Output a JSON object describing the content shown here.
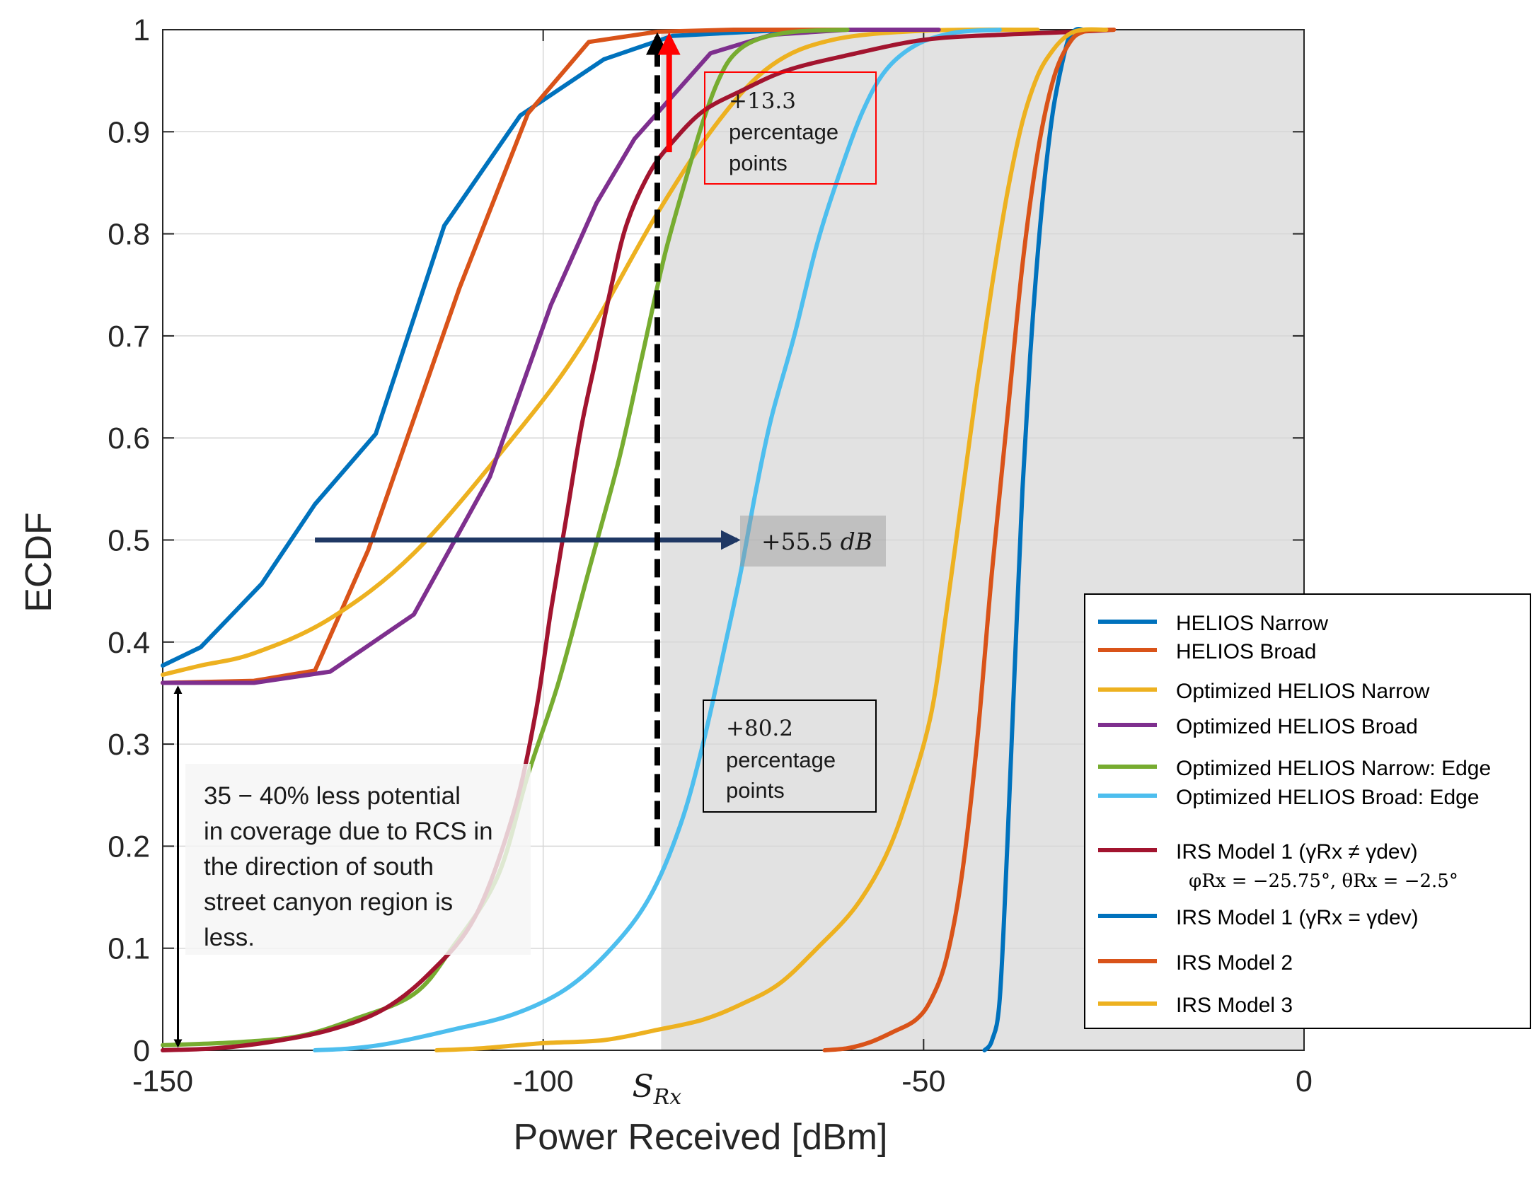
{
  "chart_data": {
    "type": "line",
    "title": "",
    "xlabel": "Power Received [dBm]",
    "ylabel": "ECDF",
    "xlim": [
      -150,
      0
    ],
    "ylim": [
      0,
      1
    ],
    "grid": true,
    "legend_placement": "bottom-right",
    "x_ticks": [
      {
        "value": -150,
        "label": "-150"
      },
      {
        "value": -100,
        "label": "-100"
      },
      {
        "value": -50,
        "label": "-50"
      },
      {
        "value": 0,
        "label": "0"
      }
    ],
    "y_ticks": [
      {
        "value": 0,
        "label": "0"
      },
      {
        "value": 0.1,
        "label": "0.1"
      },
      {
        "value": 0.2,
        "label": "0.2"
      },
      {
        "value": 0.3,
        "label": "0.3"
      },
      {
        "value": 0.4,
        "label": "0.4"
      },
      {
        "value": 0.5,
        "label": "0.5"
      },
      {
        "value": 0.6,
        "label": "0.6"
      },
      {
        "value": 0.7,
        "label": "0.7"
      },
      {
        "value": 0.8,
        "label": "0.8"
      },
      {
        "value": 0.9,
        "label": "0.9"
      },
      {
        "value": 1,
        "label": "1"
      }
    ],
    "shaded_region": {
      "x_from": -84.5,
      "x_to": 0,
      "color": "#e2e2e2"
    },
    "series": [
      {
        "name": "HELIOS Narrow",
        "color": "#0072BD",
        "smooth": false,
        "points": [
          [
            -150,
            0.377
          ],
          [
            -145,
            0.395
          ],
          [
            -141,
            0.426
          ],
          [
            -137,
            0.457
          ],
          [
            -130,
            0.535
          ],
          [
            -122,
            0.604
          ],
          [
            -113,
            0.808
          ],
          [
            -103,
            0.916
          ],
          [
            -92,
            0.971
          ],
          [
            -83,
            0.994
          ],
          [
            -70,
            0.999
          ],
          [
            -60,
            1.0
          ],
          [
            -50,
            1.0
          ]
        ]
      },
      {
        "name": "HELIOS Broad",
        "color": "#D95319",
        "smooth": false,
        "points": [
          [
            -150,
            0.36
          ],
          [
            -138,
            0.362
          ],
          [
            -130,
            0.372
          ],
          [
            -123,
            0.49
          ],
          [
            -111,
            0.747
          ],
          [
            -102,
            0.918
          ],
          [
            -94,
            0.988
          ],
          [
            -85,
            0.998
          ],
          [
            -75,
            1.0
          ],
          [
            -55,
            1.0
          ]
        ]
      },
      {
        "name": "Optimized HELIOS Narrow",
        "color": "#EDB120",
        "smooth": true,
        "points": [
          [
            -150,
            0.368
          ],
          [
            -145,
            0.377
          ],
          [
            -138,
            0.389
          ],
          [
            -128,
            0.423
          ],
          [
            -117,
            0.487
          ],
          [
            -104,
            0.6
          ],
          [
            -95,
            0.69
          ],
          [
            -85,
            0.82
          ],
          [
            -77,
            0.91
          ],
          [
            -70,
            0.965
          ],
          [
            -62,
            0.99
          ],
          [
            -50,
            0.999
          ],
          [
            -35,
            1.0
          ]
        ]
      },
      {
        "name": "Optimized HELIOS Broad",
        "color": "#7E2F8E",
        "smooth": false,
        "points": [
          [
            -150,
            0.36
          ],
          [
            -138,
            0.36
          ],
          [
            -128,
            0.371
          ],
          [
            -117,
            0.427
          ],
          [
            -107,
            0.562
          ],
          [
            -99,
            0.73
          ],
          [
            -93,
            0.83
          ],
          [
            -88,
            0.893
          ],
          [
            -83,
            0.935
          ],
          [
            -78,
            0.977
          ],
          [
            -70,
            0.995
          ],
          [
            -60,
            1.0
          ],
          [
            -48,
            1.0
          ]
        ]
      },
      {
        "name": "Optimized HELIOS Narrow: Edge",
        "color": "#77AC30",
        "smooth": true,
        "points": [
          [
            -150,
            0.005
          ],
          [
            -140,
            0.008
          ],
          [
            -132,
            0.014
          ],
          [
            -125,
            0.03
          ],
          [
            -117,
            0.055
          ],
          [
            -112,
            0.1
          ],
          [
            -106,
            0.17
          ],
          [
            -102,
            0.27
          ],
          [
            -98,
            0.36
          ],
          [
            -94,
            0.47
          ],
          [
            -90,
            0.58
          ],
          [
            -87,
            0.68
          ],
          [
            -84,
            0.78
          ],
          [
            -81,
            0.86
          ],
          [
            -79,
            0.91
          ],
          [
            -77,
            0.95
          ],
          [
            -75,
            0.975
          ],
          [
            -72,
            0.99
          ],
          [
            -67,
            0.998
          ],
          [
            -60,
            1.0
          ]
        ]
      },
      {
        "name": "Optimized HELIOS Broad: Edge",
        "color": "#4DBEEE",
        "smooth": true,
        "points": [
          [
            -130,
            0.0
          ],
          [
            -125,
            0.002
          ],
          [
            -120,
            0.007
          ],
          [
            -112,
            0.02
          ],
          [
            -104,
            0.035
          ],
          [
            -97,
            0.06
          ],
          [
            -91,
            0.1
          ],
          [
            -86,
            0.15
          ],
          [
            -82,
            0.22
          ],
          [
            -79,
            0.3
          ],
          [
            -76,
            0.4
          ],
          [
            -74,
            0.47
          ],
          [
            -72,
            0.55
          ],
          [
            -70,
            0.62
          ],
          [
            -67,
            0.7
          ],
          [
            -64,
            0.79
          ],
          [
            -61,
            0.86
          ],
          [
            -58,
            0.92
          ],
          [
            -55,
            0.96
          ],
          [
            -51,
            0.985
          ],
          [
            -46,
            0.997
          ],
          [
            -40,
            1.0
          ]
        ]
      },
      {
        "name": "IRS Model 1 (γRx ≠ γdev) φRx = −25.75°, θRx = −2.5°",
        "color": "#A2142F",
        "smooth": true,
        "points": [
          [
            -150,
            0.0
          ],
          [
            -143,
            0.002
          ],
          [
            -136,
            0.008
          ],
          [
            -128,
            0.02
          ],
          [
            -121,
            0.04
          ],
          [
            -115,
            0.075
          ],
          [
            -109,
            0.13
          ],
          [
            -104,
            0.23
          ],
          [
            -101,
            0.33
          ],
          [
            -99,
            0.43
          ],
          [
            -97,
            0.52
          ],
          [
            -95,
            0.61
          ],
          [
            -93,
            0.68
          ],
          [
            -91,
            0.75
          ],
          [
            -89,
            0.81
          ],
          [
            -86,
            0.86
          ],
          [
            -83,
            0.89
          ],
          [
            -79,
            0.92
          ],
          [
            -74,
            0.94
          ],
          [
            -68,
            0.96
          ],
          [
            -60,
            0.975
          ],
          [
            -50,
            0.99
          ],
          [
            -40,
            0.995
          ],
          [
            -30,
            0.998
          ],
          [
            -25,
            1.0
          ]
        ]
      },
      {
        "name": "IRS Model 1 (γRx = γdev)",
        "color": "#0072BD",
        "smooth": true,
        "points": [
          [
            -42,
            0.0
          ],
          [
            -41,
            0.01
          ],
          [
            -40,
            0.05
          ],
          [
            -39,
            0.2
          ],
          [
            -38,
            0.38
          ],
          [
            -37,
            0.55
          ],
          [
            -36,
            0.68
          ],
          [
            -35,
            0.78
          ],
          [
            -34,
            0.86
          ],
          [
            -33,
            0.92
          ],
          [
            -32,
            0.96
          ],
          [
            -31,
            0.99
          ],
          [
            -30,
            1.0
          ],
          [
            -29,
            1.0
          ]
        ]
      },
      {
        "name": "IRS Model 2",
        "color": "#D95319",
        "smooth": true,
        "points": [
          [
            -63,
            0.0
          ],
          [
            -60,
            0.002
          ],
          [
            -57,
            0.008
          ],
          [
            -54,
            0.018
          ],
          [
            -51,
            0.03
          ],
          [
            -49,
            0.05
          ],
          [
            -47,
            0.09
          ],
          [
            -45,
            0.17
          ],
          [
            -43,
            0.3
          ],
          [
            -41,
            0.47
          ],
          [
            -39,
            0.62
          ],
          [
            -37,
            0.77
          ],
          [
            -35,
            0.88
          ],
          [
            -33,
            0.95
          ],
          [
            -31,
            0.985
          ],
          [
            -29,
            0.998
          ],
          [
            -25,
            1.0
          ]
        ]
      },
      {
        "name": "IRS Model 3",
        "color": "#EDB120",
        "smooth": true,
        "points": [
          [
            -114,
            0.0
          ],
          [
            -108,
            0.002
          ],
          [
            -100,
            0.007
          ],
          [
            -92,
            0.01
          ],
          [
            -85,
            0.02
          ],
          [
            -79,
            0.03
          ],
          [
            -74,
            0.045
          ],
          [
            -69,
            0.065
          ],
          [
            -64,
            0.1
          ],
          [
            -59,
            0.14
          ],
          [
            -55,
            0.19
          ],
          [
            -52,
            0.25
          ],
          [
            -49,
            0.33
          ],
          [
            -47,
            0.43
          ],
          [
            -45,
            0.54
          ],
          [
            -43,
            0.65
          ],
          [
            -41,
            0.75
          ],
          [
            -39,
            0.84
          ],
          [
            -37,
            0.91
          ],
          [
            -35,
            0.955
          ],
          [
            -33,
            0.98
          ],
          [
            -31,
            0.995
          ],
          [
            -29,
            1.0
          ],
          [
            -26,
            1.0
          ]
        ]
      }
    ],
    "annotations": {
      "srx_label": "S",
      "srx_sub": "Rx",
      "srx_x": -84.5,
      "left_arrow": {
        "x": -148,
        "y_from": 0.0,
        "y_to": 0.36
      },
      "coverage_text": [
        "35 − 40% less potential",
        "in coverage due to RCS in",
        "the direction of south",
        "street canyon region is",
        "less."
      ],
      "h_arrow": {
        "y": 0.5,
        "x_from": -130,
        "x_to": -74
      },
      "db_text": "+55.5",
      "db_unit": "dB",
      "red_arrow": {
        "x": -84,
        "y_from": 0.88,
        "y_to": 1.0
      },
      "black_arrow": {
        "x": -85,
        "y_from": 0.2,
        "y_to": 1.0
      },
      "pp1_lines": [
        "+13.3",
        "percentage",
        "points"
      ],
      "pp2_lines": [
        "+80.2",
        "percentage",
        "points"
      ]
    },
    "legend": {
      "entries": [
        {
          "label": "HELIOS Narrow",
          "color": "#0072BD"
        },
        {
          "label": "HELIOS Broad",
          "color": "#D95319"
        },
        {
          "label": "Optimized HELIOS Narrow",
          "color": "#EDB120"
        },
        {
          "label": "Optimized HELIOS Broad",
          "color": "#7E2F8E"
        },
        {
          "label": "Optimized HELIOS Narrow: Edge",
          "color": "#77AC30"
        },
        {
          "label": "Optimized HELIOS Broad: Edge",
          "color": "#4DBEEE"
        },
        {
          "label": "IRS Model 1 (γRx ≠ γdev)",
          "second_line": "φRx = −25.75°, θRx = −2.5°",
          "color": "#A2142F"
        },
        {
          "label": "IRS Model 1 (γRx = γdev)",
          "color": "#0072BD"
        },
        {
          "label": "IRS Model 2",
          "color": "#D95319"
        },
        {
          "label": "IRS Model 3",
          "color": "#EDB120"
        }
      ]
    }
  }
}
